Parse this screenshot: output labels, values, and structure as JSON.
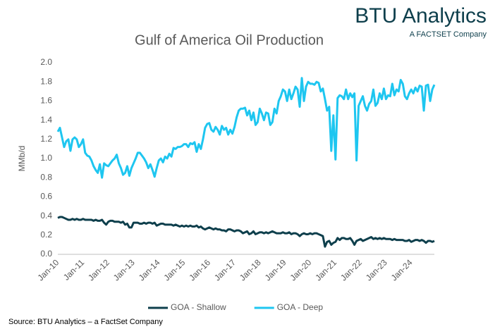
{
  "logo": {
    "name": "BTU Analytics",
    "tagline": "A FACTSET Company"
  },
  "source": "Source: BTU Analytics – a FactSet Company",
  "chart_data": {
    "type": "line",
    "title": "Gulf of America Oil Production",
    "y_label": "MMb/d",
    "ylim": [
      0,
      2
    ],
    "yticks": [
      {
        "value": 0,
        "label": "0.0"
      },
      0.2,
      0.4,
      0.6,
      0.8,
      {
        "value": 1,
        "label": "1.0"
      },
      1.2,
      1.4,
      1.6,
      1.8,
      {
        "value": 2,
        "label": "2.0"
      }
    ],
    "grid": false,
    "legend": "bottom",
    "categories": [
      "Jan-10",
      null,
      null,
      null,
      null,
      null,
      null,
      null,
      null,
      null,
      null,
      null,
      "Jan-11",
      null,
      null,
      null,
      null,
      null,
      null,
      null,
      null,
      null,
      null,
      null,
      "Jan-12",
      null,
      null,
      null,
      null,
      null,
      null,
      null,
      null,
      null,
      null,
      null,
      "Jan-13",
      null,
      null,
      null,
      null,
      null,
      null,
      null,
      null,
      null,
      null,
      null,
      "Jan-14",
      null,
      null,
      null,
      null,
      null,
      null,
      null,
      null,
      null,
      null,
      null,
      "Jan-15",
      null,
      null,
      null,
      null,
      null,
      null,
      null,
      null,
      null,
      null,
      null,
      "Jan-16",
      null,
      null,
      null,
      null,
      null,
      null,
      null,
      null,
      null,
      null,
      null,
      "Jan-17",
      null,
      null,
      null,
      null,
      null,
      null,
      null,
      null,
      null,
      null,
      null,
      "Jan-18",
      null,
      null,
      null,
      null,
      null,
      null,
      null,
      null,
      null,
      null,
      null,
      "Jan-19",
      null,
      null,
      null,
      null,
      null,
      null,
      null,
      null,
      null,
      null,
      null,
      "Jan-20",
      null,
      null,
      null,
      null,
      null,
      null,
      null,
      null,
      null,
      null,
      null,
      "Jan-21",
      null,
      null,
      null,
      null,
      null,
      null,
      null,
      null,
      null,
      null,
      null,
      "Jan-22",
      null,
      null,
      null,
      null,
      null,
      null,
      null,
      null,
      null,
      null,
      null,
      "Jan-23",
      null,
      null,
      null,
      null,
      null,
      null,
      null,
      null,
      null,
      null,
      null,
      "Jan-24",
      null,
      null,
      null,
      null,
      null,
      null,
      null,
      null,
      null,
      null,
      null
    ],
    "series": [
      {
        "name": "GOA - Shallow",
        "color": "#0e3f4c",
        "values": [
          0.38,
          0.39,
          0.39,
          0.38,
          0.37,
          0.36,
          0.36,
          0.37,
          0.36,
          0.37,
          0.36,
          0.36,
          0.37,
          0.36,
          0.36,
          0.36,
          0.36,
          0.35,
          0.36,
          0.35,
          0.35,
          0.36,
          0.33,
          0.31,
          0.34,
          0.35,
          0.35,
          0.34,
          0.34,
          0.34,
          0.33,
          0.34,
          0.31,
          0.32,
          0.28,
          0.28,
          0.33,
          0.33,
          0.33,
          0.32,
          0.32,
          0.33,
          0.32,
          0.33,
          0.33,
          0.32,
          0.33,
          0.3,
          0.31,
          0.32,
          0.32,
          0.31,
          0.31,
          0.31,
          0.31,
          0.3,
          0.31,
          0.3,
          0.29,
          0.3,
          0.29,
          0.3,
          0.29,
          0.3,
          0.29,
          0.29,
          0.3,
          0.28,
          0.29,
          0.27,
          0.26,
          0.27,
          0.28,
          0.27,
          0.26,
          0.27,
          0.26,
          0.26,
          0.25,
          0.25,
          0.24,
          0.26,
          0.26,
          0.25,
          0.24,
          0.25,
          0.25,
          0.24,
          0.22,
          0.23,
          0.24,
          0.21,
          0.22,
          0.24,
          0.21,
          0.22,
          0.23,
          0.23,
          0.22,
          0.23,
          0.22,
          0.23,
          0.24,
          0.23,
          0.22,
          0.22,
          0.22,
          0.23,
          0.22,
          0.22,
          0.23,
          0.21,
          0.22,
          0.22,
          0.21,
          0.19,
          0.21,
          0.22,
          0.21,
          0.21,
          0.22,
          0.21,
          0.22,
          0.22,
          0.21,
          0.2,
          0.19,
          0.08,
          0.13,
          0.14,
          0.1,
          0.12,
          0.13,
          0.17,
          0.15,
          0.17,
          0.17,
          0.16,
          0.16,
          0.17,
          0.14,
          0.1,
          0.14,
          0.15,
          0.16,
          0.14,
          0.15,
          0.16,
          0.17,
          0.18,
          0.16,
          0.17,
          0.16,
          0.17,
          0.16,
          0.17,
          0.16,
          0.16,
          0.16,
          0.15,
          0.16,
          0.15,
          0.15,
          0.15,
          0.15,
          0.14,
          0.14,
          0.15,
          0.13,
          0.14,
          0.15,
          0.15,
          0.14,
          0.15,
          0.14,
          0.12,
          0.14,
          0.14,
          0.13,
          0.14
        ]
      },
      {
        "name": "GOA - Deep",
        "color": "#1ec6f0",
        "values": [
          1.28,
          1.32,
          1.22,
          1.12,
          1.18,
          1.2,
          1.08,
          1.2,
          1.22,
          1.2,
          1.12,
          1.15,
          1.2,
          1.06,
          1.03,
          1.02,
          0.98,
          0.92,
          0.88,
          0.85,
          0.94,
          0.8,
          0.95,
          0.93,
          0.92,
          0.95,
          0.98,
          1.0,
          1.04,
          0.95,
          0.9,
          0.83,
          0.85,
          0.92,
          0.82,
          0.9,
          0.95,
          1.0,
          1.06,
          1.06,
          1.03,
          1.0,
          0.96,
          0.9,
          0.94,
          0.88,
          0.81,
          0.9,
          0.98,
          1.0,
          0.96,
          1.02,
          1.0,
          1.05,
          1.02,
          1.11,
          1.1,
          1.12,
          1.12,
          1.13,
          1.15,
          1.15,
          1.12,
          1.16,
          1.15,
          1.17,
          1.07,
          1.15,
          1.1,
          1.2,
          1.32,
          1.36,
          1.37,
          1.3,
          1.28,
          1.33,
          1.3,
          1.25,
          1.34,
          1.3,
          1.32,
          1.25,
          1.3,
          1.26,
          1.33,
          1.43,
          1.5,
          1.52,
          1.52,
          1.53,
          1.45,
          1.5,
          1.4,
          1.48,
          1.35,
          1.38,
          1.52,
          1.47,
          1.4,
          1.48,
          1.47,
          1.35,
          1.38,
          1.52,
          1.47,
          1.6,
          1.65,
          1.72,
          1.7,
          1.6,
          1.72,
          1.62,
          1.68,
          1.75,
          1.72,
          1.54,
          1.84,
          1.6,
          1.75,
          1.8,
          1.78,
          1.78,
          1.77,
          1.8,
          1.79,
          1.7,
          1.73,
          1.62,
          1.5,
          1.54,
          1.08,
          1.45,
          0.99,
          1.63,
          1.66,
          1.65,
          1.62,
          1.72,
          1.62,
          1.68,
          1.64,
          1.68,
          0.98,
          1.55,
          1.6,
          1.65,
          1.55,
          1.5,
          1.57,
          1.6,
          1.72,
          1.55,
          1.58,
          1.68,
          1.62,
          1.73,
          1.62,
          1.66,
          1.65,
          1.78,
          1.66,
          1.72,
          1.7,
          1.82,
          1.78,
          1.65,
          1.62,
          1.68,
          1.72,
          1.68,
          1.74,
          1.7,
          1.76,
          1.75,
          1.5,
          1.76,
          1.77,
          1.6,
          1.72,
          1.77
        ]
      }
    ]
  }
}
